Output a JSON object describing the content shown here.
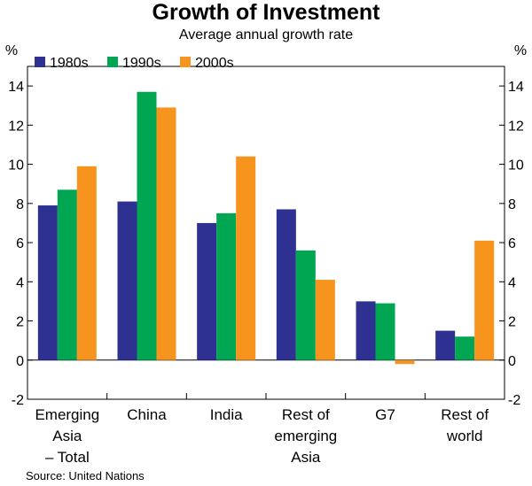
{
  "chart_data": {
    "type": "bar",
    "title": "Growth of Investment",
    "subtitle": "Average annual growth rate",
    "ylabel_left": "%",
    "ylabel_right": "%",
    "ylim": [
      -2,
      15
    ],
    "yticks": [
      "-2",
      "0",
      "2",
      "4",
      "6",
      "8",
      "10",
      "12",
      "14"
    ],
    "categories": [
      [
        "Emerging",
        "Asia",
        "– Total"
      ],
      [
        "China"
      ],
      [
        "India"
      ],
      [
        "Rest of",
        "emerging",
        "Asia"
      ],
      [
        "G7"
      ],
      [
        "Rest of",
        "world"
      ]
    ],
    "series": [
      {
        "name": "1980s",
        "color": "#2e3192",
        "values": [
          7.9,
          8.1,
          7.0,
          7.7,
          3.0,
          1.5
        ]
      },
      {
        "name": "1990s",
        "color": "#00a651",
        "values": [
          8.7,
          13.7,
          7.5,
          5.6,
          2.9,
          1.2
        ]
      },
      {
        "name": "2000s",
        "color": "#f7941d",
        "values": [
          9.9,
          12.9,
          10.4,
          4.1,
          -0.2,
          6.1
        ]
      }
    ],
    "source": "Source: United Nations"
  }
}
